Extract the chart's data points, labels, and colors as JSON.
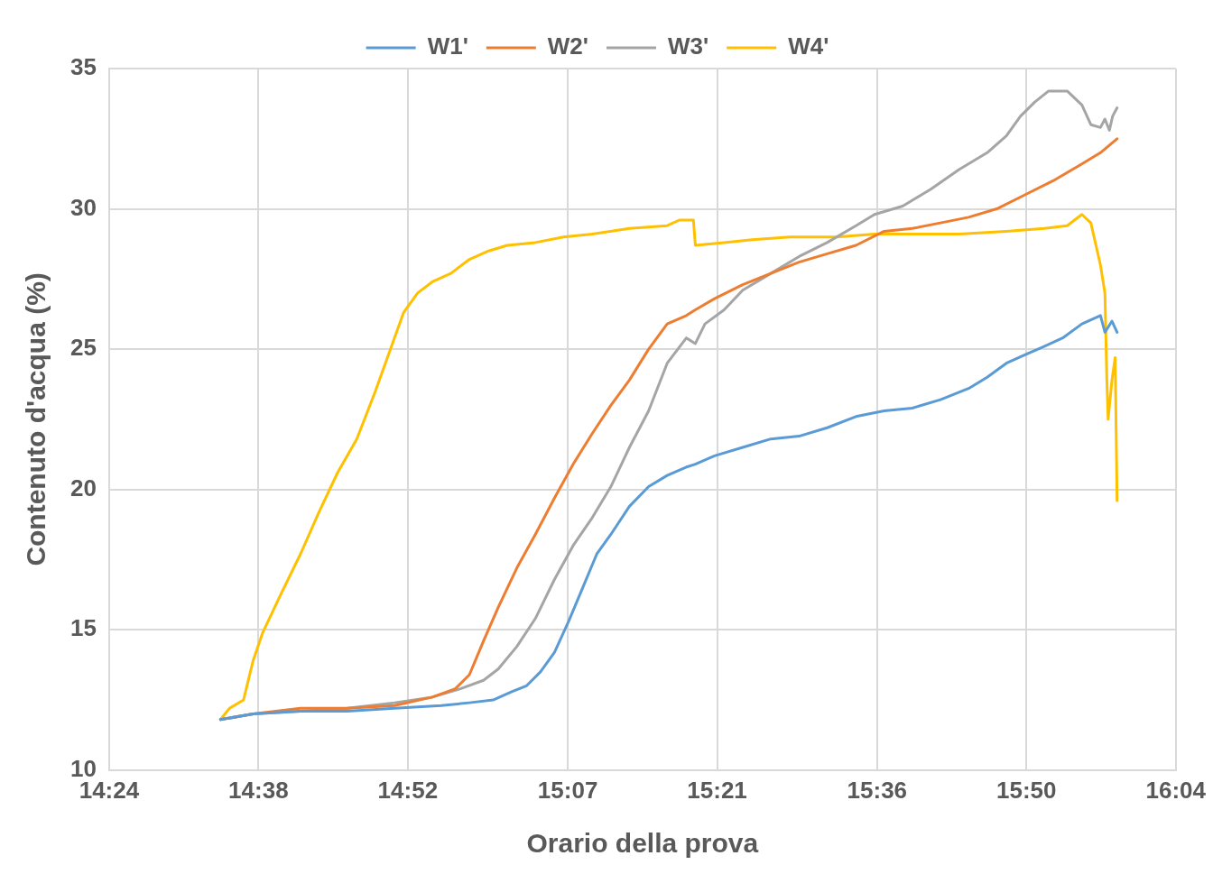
{
  "chart_data": {
    "type": "line",
    "xlabel": "Orario della prova",
    "ylabel": "Contenuto d'acqua (%)",
    "xlim": [
      14.4,
      16.0667
    ],
    "xticks": [
      {
        "value": 14.4,
        "label": "14:24"
      },
      {
        "value": 14.6333,
        "label": "14:38"
      },
      {
        "value": 14.8667,
        "label": "14:52"
      },
      {
        "value": 15.1167,
        "label": "15:07"
      },
      {
        "value": 15.35,
        "label": "15:21"
      },
      {
        "value": 15.6,
        "label": "15:36"
      },
      {
        "value": 15.8333,
        "label": "15:50"
      },
      {
        "value": 16.0667,
        "label": "16:04"
      }
    ],
    "ylim": [
      10,
      35
    ],
    "yticks": [
      10,
      15,
      20,
      25,
      30,
      35
    ],
    "grid": true,
    "legend": "top",
    "marker": "none",
    "line_style": "solid",
    "series": [
      {
        "name": "W1'",
        "color": "#5b9bd5",
        "x": [
          14.574,
          14.625,
          14.699,
          14.772,
          14.846,
          14.919,
          14.963,
          15.0,
          15.03,
          15.052,
          15.074,
          15.096,
          15.118,
          15.14,
          15.162,
          15.184,
          15.213,
          15.243,
          15.272,
          15.302,
          15.316,
          15.346,
          15.39,
          15.434,
          15.478,
          15.522,
          15.567,
          15.611,
          15.655,
          15.699,
          15.743,
          15.772,
          15.802,
          15.831,
          15.861,
          15.89,
          15.92,
          15.949,
          15.956,
          15.967,
          15.975
        ],
        "values": [
          11.8,
          12.0,
          12.1,
          12.1,
          12.2,
          12.3,
          12.4,
          12.5,
          12.8,
          13.0,
          13.5,
          14.2,
          15.3,
          16.5,
          17.7,
          18.4,
          19.4,
          20.1,
          20.5,
          20.8,
          20.9,
          21.2,
          21.5,
          21.8,
          21.9,
          22.2,
          22.6,
          22.8,
          22.9,
          23.2,
          23.6,
          24.0,
          24.5,
          24.8,
          25.1,
          25.4,
          25.9,
          26.2,
          25.6,
          26.0,
          25.6
        ]
      },
      {
        "name": "W2'",
        "color": "#ed7d31",
        "x": [
          14.574,
          14.625,
          14.699,
          14.772,
          14.846,
          14.905,
          14.941,
          14.963,
          14.985,
          15.008,
          15.037,
          15.066,
          15.096,
          15.125,
          15.155,
          15.184,
          15.213,
          15.243,
          15.272,
          15.302,
          15.316,
          15.346,
          15.39,
          15.434,
          15.478,
          15.522,
          15.567,
          15.611,
          15.655,
          15.699,
          15.743,
          15.787,
          15.831,
          15.875,
          15.92,
          15.949,
          15.975
        ],
        "values": [
          11.8,
          12.0,
          12.2,
          12.2,
          12.3,
          12.6,
          12.9,
          13.4,
          14.6,
          15.8,
          17.2,
          18.4,
          19.7,
          20.9,
          22.0,
          23.0,
          23.9,
          25.0,
          25.9,
          26.2,
          26.4,
          26.8,
          27.3,
          27.7,
          28.1,
          28.4,
          28.7,
          29.2,
          29.3,
          29.5,
          29.7,
          30.0,
          30.5,
          31.0,
          31.6,
          32.0,
          32.5
        ]
      },
      {
        "name": "W3'",
        "color": "#a5a5a5",
        "x": [
          14.574,
          14.625,
          14.699,
          14.772,
          14.846,
          14.905,
          14.949,
          14.985,
          15.008,
          15.037,
          15.066,
          15.096,
          15.125,
          15.155,
          15.184,
          15.213,
          15.243,
          15.272,
          15.302,
          15.316,
          15.331,
          15.361,
          15.39,
          15.434,
          15.478,
          15.522,
          15.567,
          15.596,
          15.64,
          15.684,
          15.728,
          15.772,
          15.802,
          15.824,
          15.846,
          15.868,
          15.897,
          15.92,
          15.934,
          15.949,
          15.956,
          15.963,
          15.968,
          15.975
        ],
        "values": [
          11.8,
          12.0,
          12.1,
          12.2,
          12.4,
          12.6,
          12.9,
          13.2,
          13.6,
          14.4,
          15.4,
          16.8,
          18.0,
          19.0,
          20.1,
          21.5,
          22.8,
          24.5,
          25.4,
          25.2,
          25.9,
          26.4,
          27.1,
          27.7,
          28.3,
          28.8,
          29.4,
          29.8,
          30.1,
          30.7,
          31.4,
          32.0,
          32.6,
          33.3,
          33.8,
          34.2,
          34.2,
          33.7,
          33.0,
          32.9,
          33.2,
          32.8,
          33.3,
          33.6
        ]
      },
      {
        "name": "W4'",
        "color": "#ffc000",
        "x": [
          14.574,
          14.588,
          14.61,
          14.625,
          14.64,
          14.669,
          14.699,
          14.728,
          14.757,
          14.787,
          14.816,
          14.838,
          14.86,
          14.882,
          14.905,
          14.934,
          14.963,
          14.993,
          15.022,
          15.066,
          15.11,
          15.155,
          15.213,
          15.272,
          15.291,
          15.313,
          15.316,
          15.361,
          15.405,
          15.464,
          15.537,
          15.596,
          15.655,
          15.728,
          15.802,
          15.861,
          15.897,
          15.92,
          15.934,
          15.942,
          15.949,
          15.956,
          15.959,
          15.961,
          15.967,
          15.972,
          15.975
        ],
        "values": [
          11.8,
          12.2,
          12.5,
          13.9,
          14.9,
          16.3,
          17.7,
          19.2,
          20.6,
          21.8,
          23.5,
          24.9,
          26.3,
          27.0,
          27.4,
          27.7,
          28.2,
          28.5,
          28.7,
          28.8,
          29.0,
          29.1,
          29.3,
          29.4,
          29.6,
          29.6,
          28.7,
          28.8,
          28.9,
          29.0,
          29.0,
          29.1,
          29.1,
          29.1,
          29.2,
          29.3,
          29.4,
          29.8,
          29.5,
          28.7,
          28.0,
          27.0,
          23.9,
          22.5,
          23.9,
          24.7,
          19.6
        ]
      }
    ]
  }
}
